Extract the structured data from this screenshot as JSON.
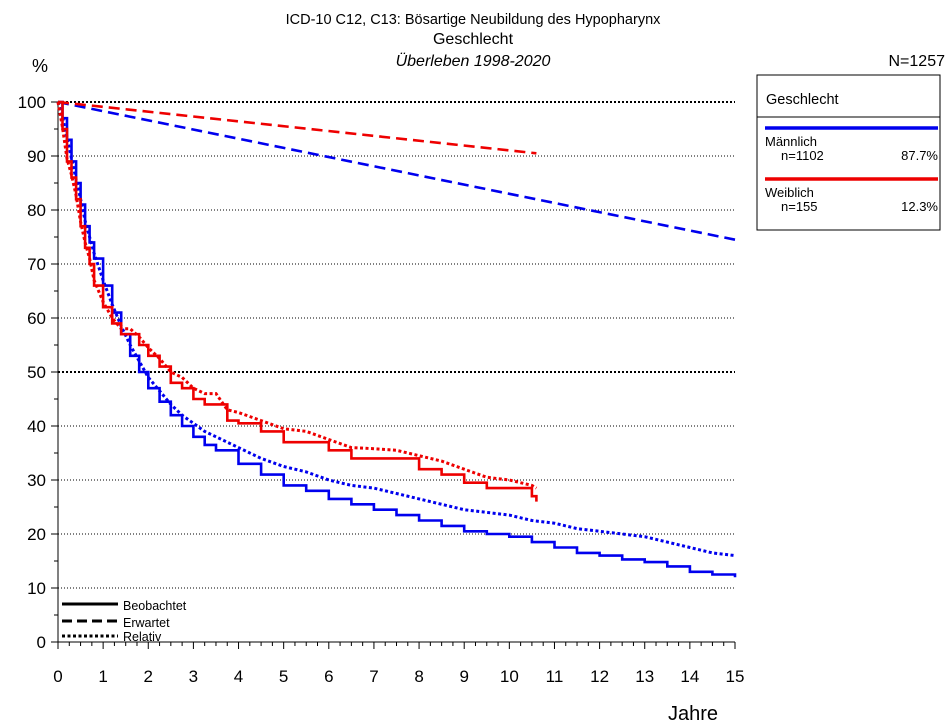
{
  "chart_data": {
    "type": "line",
    "title": "ICD-10 C12, C13: Bösartige Neubildung des Hypopharynx",
    "subtitle": "Geschlecht",
    "subtitle2": "Überleben 1998-2020",
    "ylabel": "%",
    "xlabel": "Jahre",
    "n_total": "N=1257",
    "xlim": [
      0,
      15
    ],
    "ylim": [
      0,
      100
    ],
    "x_ticks": [
      0,
      1,
      2,
      3,
      4,
      5,
      6,
      7,
      8,
      9,
      10,
      11,
      12,
      13,
      14,
      15
    ],
    "y_ticks": [
      0,
      10,
      20,
      30,
      40,
      50,
      60,
      70,
      80,
      90,
      100
    ],
    "grid": "horizontal-dotted",
    "legend": {
      "title": "Geschlecht",
      "placement": "right",
      "entries": [
        {
          "label": "Männlich",
          "n": "n=1102",
          "pct": "87.7%",
          "color": "#0000ee"
        },
        {
          "label": "Weiblich",
          "n": "n=155",
          "pct": "12.3%",
          "color": "#ee0000"
        }
      ]
    },
    "line_style_legend": {
      "placement": "bottom-left",
      "entries": [
        {
          "label": "Beobachtet",
          "style": "solid"
        },
        {
          "label": "Erwartet",
          "style": "dashed"
        },
        {
          "label": "Relativ",
          "style": "dotted"
        }
      ]
    },
    "series": [
      {
        "name": "Männlich",
        "style": "solid",
        "color": "#0000ee",
        "x": [
          0,
          0.1,
          0.2,
          0.3,
          0.4,
          0.5,
          0.6,
          0.7,
          0.8,
          1.0,
          1.2,
          1.4,
          1.6,
          1.8,
          2.0,
          2.25,
          2.5,
          2.75,
          3.0,
          3.25,
          3.5,
          4.0,
          4.5,
          5.0,
          5.5,
          6.0,
          6.5,
          7.0,
          7.5,
          8.0,
          8.5,
          9.0,
          9.5,
          10.0,
          10.5,
          11.0,
          11.5,
          12.0,
          12.5,
          13.0,
          13.5,
          14.0,
          14.5,
          15.0
        ],
        "y": [
          100,
          97,
          93,
          89,
          85,
          81,
          77,
          74,
          71,
          66,
          61,
          57,
          53,
          50,
          47,
          44.5,
          42,
          40,
          38,
          36.5,
          35.5,
          33,
          31,
          29,
          28,
          26.5,
          25.5,
          24.5,
          23.5,
          22.5,
          21.5,
          20.5,
          20,
          19.5,
          18.5,
          17.5,
          16.5,
          16,
          15.3,
          14.8,
          14,
          13,
          12.5,
          12
        ]
      },
      {
        "name": "Männlich",
        "style": "dashed",
        "color": "#0000ee",
        "x": [
          0,
          5,
          10,
          15
        ],
        "y": [
          100,
          91.5,
          83,
          74.5
        ]
      },
      {
        "name": "Männlich",
        "style": "dotted",
        "color": "#0000ee",
        "x": [
          0,
          0.1,
          0.2,
          0.3,
          0.4,
          0.5,
          0.6,
          0.7,
          0.8,
          1.0,
          1.2,
          1.4,
          1.6,
          1.8,
          2.0,
          2.25,
          2.5,
          2.75,
          3.0,
          3.25,
          3.5,
          4.0,
          4.5,
          5.0,
          5.5,
          6.0,
          6.5,
          7.0,
          7.5,
          8.0,
          8.5,
          9.0,
          9.5,
          10.0,
          10.5,
          11.0,
          11.5,
          12.0,
          12.5,
          13.0,
          13.5,
          14.0,
          14.5,
          15.0
        ],
        "y": [
          100,
          97.2,
          93.5,
          89.5,
          85.7,
          82,
          78,
          75,
          72,
          67,
          62.5,
          58.5,
          55,
          52,
          49,
          46.5,
          44,
          42,
          40.5,
          39,
          38,
          36,
          34,
          32.5,
          31.5,
          30,
          29,
          28.5,
          27.5,
          26.5,
          25.5,
          24.5,
          24,
          23.5,
          22.5,
          22,
          21,
          20.5,
          20,
          19.5,
          18.5,
          17.5,
          16.5,
          16
        ]
      },
      {
        "name": "Weiblich",
        "style": "solid",
        "color": "#ee0000",
        "x": [
          0,
          0.1,
          0.2,
          0.3,
          0.4,
          0.5,
          0.6,
          0.7,
          0.8,
          1.0,
          1.2,
          1.4,
          1.6,
          1.8,
          2.0,
          2.25,
          2.5,
          2.75,
          3.0,
          3.25,
          3.5,
          3.75,
          4.0,
          4.5,
          5.0,
          5.5,
          6.0,
          6.5,
          7.0,
          7.5,
          8.0,
          8.5,
          9.0,
          9.5,
          10.0,
          10.5,
          10.6
        ],
        "y": [
          100,
          95,
          89,
          86,
          82,
          77,
          73,
          70,
          66,
          62,
          59,
          57,
          57,
          55,
          53,
          51,
          48,
          47,
          45,
          44,
          44,
          41,
          40.5,
          39,
          37,
          37,
          35.5,
          34,
          34,
          34,
          32,
          31,
          29.5,
          28.5,
          28.5,
          27,
          26
        ]
      },
      {
        "name": "Weiblich",
        "style": "dashed",
        "color": "#ee0000",
        "x": [
          0,
          10.6
        ],
        "y": [
          100,
          90.5
        ]
      },
      {
        "name": "Weiblich",
        "style": "dotted",
        "color": "#ee0000",
        "x": [
          0,
          0.1,
          0.2,
          0.3,
          0.4,
          0.5,
          0.6,
          0.7,
          0.8,
          1.0,
          1.2,
          1.4,
          1.6,
          1.8,
          2.0,
          2.25,
          2.5,
          2.75,
          3.0,
          3.25,
          3.5,
          3.75,
          4.0,
          4.5,
          5.0,
          5.5,
          6.0,
          6.5,
          7.0,
          7.5,
          8.0,
          8.5,
          9.0,
          9.5,
          10.0,
          10.5,
          10.6
        ],
        "y": [
          100,
          95.3,
          89.5,
          86.5,
          82.7,
          77.8,
          74,
          71,
          67,
          63,
          60,
          58,
          58,
          56.5,
          54.5,
          52.5,
          50,
          49,
          47,
          46,
          46,
          43,
          42.5,
          41,
          39.5,
          39,
          37.5,
          36,
          35.8,
          35.5,
          34.5,
          33.5,
          32,
          30.5,
          30,
          29,
          28.5
        ]
      }
    ]
  }
}
